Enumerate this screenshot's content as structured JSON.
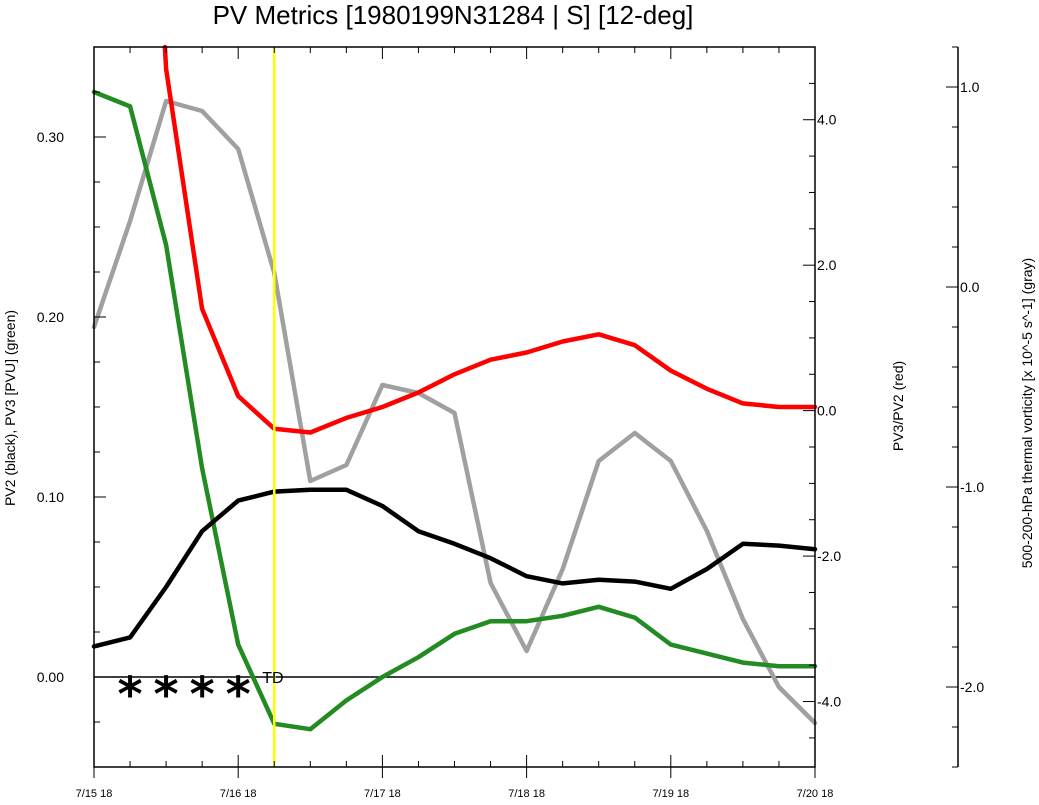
{
  "chart_data": {
    "type": "line",
    "title": "PV Metrics [1980199N31284 | S] [12-deg]",
    "axes": {
      "left": {
        "label": "PV2 (black), PV3 [PVU] (green)",
        "range": [
          -0.05,
          0.35
        ],
        "ticks": [
          0.0,
          0.1,
          0.2,
          0.3
        ],
        "tick_labels": [
          "0.00",
          "0.10",
          "0.20",
          "0.30"
        ]
      },
      "right1": {
        "label": "PV3/PV2 (red)",
        "range": [
          -4.9,
          5.0
        ],
        "ticks": [
          -4.0,
          -2.0,
          0.0,
          2.0,
          4.0
        ],
        "tick_labels": [
          "-4.0",
          "-2.0",
          "0.0",
          "2.0",
          "4.0"
        ]
      },
      "right2": {
        "label": "500-200-hPa thermal vorticity [x 10^-5 s^-1] (gray)",
        "range": [
          -2.4,
          1.2
        ],
        "ticks": [
          -2.0,
          -1.0,
          0.0,
          1.0
        ],
        "tick_labels": [
          "-2.0",
          "-1.0",
          "0.0",
          "1.0"
        ]
      },
      "x": {
        "range": [
          0,
          120
        ],
        "ticks": [
          0,
          24,
          48,
          72,
          96,
          120
        ],
        "tick_labels": [
          "7/15 18",
          "7/16 18",
          "7/17 18",
          "7/18 18",
          "7/19 18",
          "7/20 18"
        ]
      }
    },
    "x": [
      0,
      6,
      12,
      18,
      24,
      30,
      36,
      42,
      48,
      54,
      60,
      66,
      72,
      78,
      84,
      90,
      96,
      102,
      108,
      114,
      120
    ],
    "series": [
      {
        "name": "PV2",
        "color": "#000000",
        "axis": "left",
        "values": [
          0.017,
          0.022,
          0.05,
          0.081,
          0.098,
          0.103,
          0.104,
          0.104,
          0.095,
          0.081,
          0.074,
          0.066,
          0.056,
          0.052,
          0.054,
          0.053,
          0.049,
          0.06,
          0.074,
          0.073,
          0.071
        ]
      },
      {
        "name": "PV3",
        "color": "#228B22",
        "axis": "left",
        "values": [
          0.325,
          0.317,
          0.24,
          0.116,
          0.018,
          -0.026,
          -0.029,
          -0.013,
          0.0,
          0.011,
          0.024,
          0.031,
          0.031,
          0.034,
          0.039,
          0.033,
          0.018,
          0.013,
          0.008,
          0.006,
          0.006
        ]
      },
      {
        "name": "PV3/PV2",
        "color": "#FF0000",
        "axis": "right1",
        "x": [
          11.8,
          12,
          18,
          24,
          30,
          36,
          42,
          48,
          54,
          60,
          66,
          72,
          78,
          84,
          90,
          96,
          102,
          108,
          114,
          120
        ],
        "values": [
          5.0,
          4.7,
          1.4,
          0.2,
          -0.25,
          -0.3,
          -0.1,
          0.05,
          0.25,
          0.5,
          0.7,
          0.8,
          0.95,
          1.05,
          0.9,
          0.55,
          0.3,
          0.1,
          0.05,
          0.05
        ]
      },
      {
        "name": "thermal vorticity",
        "color": "#A0A0A0",
        "axis": "right2",
        "values": [
          -0.2,
          0.33,
          0.93,
          0.88,
          0.69,
          0.07,
          -0.97,
          -0.89,
          -0.49,
          -0.53,
          -0.63,
          -1.48,
          -1.82,
          -1.41,
          -0.87,
          -0.73,
          -0.87,
          -1.22,
          -1.66,
          -2.0,
          -2.18
        ]
      }
    ],
    "markers": {
      "vertical_line": {
        "x": 30,
        "color": "#FFFF00"
      },
      "stars": {
        "x": [
          6,
          12,
          18,
          24
        ],
        "y": 0.0,
        "symbol": "*"
      },
      "label": {
        "text": "TD",
        "x": 28,
        "y": 0.0
      }
    },
    "grid": false,
    "legend": "none"
  }
}
